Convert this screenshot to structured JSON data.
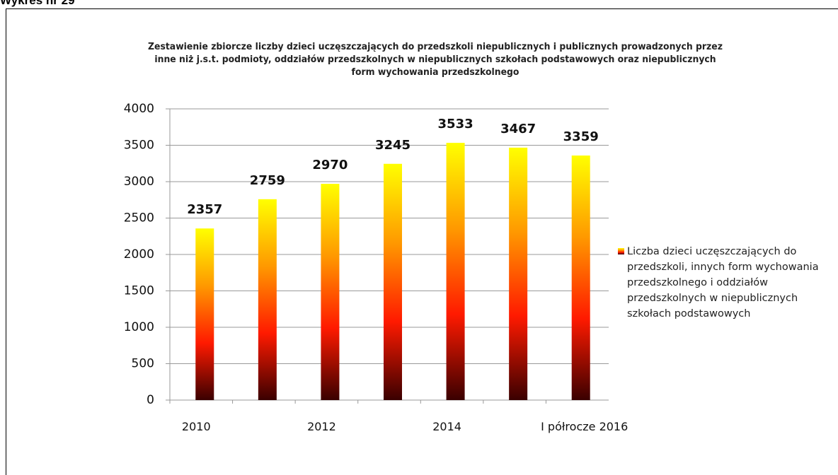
{
  "heading": "Wykres nr 29",
  "chart_data": {
    "type": "bar",
    "title": "Zestawienie zbiorcze liczby dzieci uczęszczających do przedszkoli niepublicznych i publicznych prowadzonych przez inne niż j.s.t. podmioty, oddziałów przedszkolnych w niepublicznych szkołach podstawowych oraz niepublicznych form wychowania przedszkolnego",
    "categories": [
      "2010",
      null,
      "2012",
      null,
      "2014",
      null,
      "I półrocze 2016"
    ],
    "series": [
      {
        "name": "Liczba dzieci uczęszczających do przedszkoli, innych form wychowania przedszkolnego i oddziałów przedszkolnych w niepublicznych szkołach podstawowych",
        "color": [
          "#ffff00",
          "#ff9900",
          "#ff1a00",
          "#3a0000"
        ],
        "values": [
          2357,
          2759,
          2970,
          3245,
          3533,
          3467,
          3359
        ]
      }
    ],
    "ylim": [
      0,
      4000
    ],
    "yticks": [
      0,
      500,
      1000,
      1500,
      2000,
      2500,
      3000,
      3500,
      4000
    ],
    "grid": true,
    "legend": "right"
  }
}
